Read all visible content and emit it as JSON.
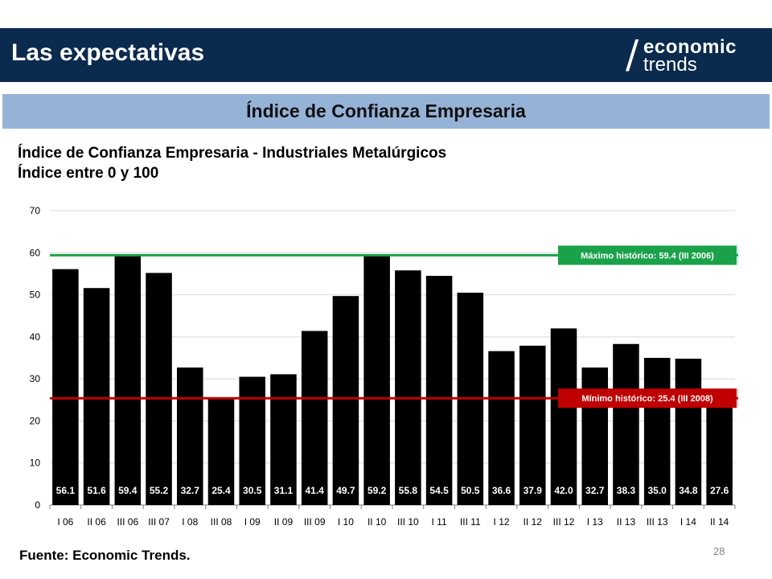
{
  "header": {
    "title": "Las expectativas",
    "logo_line1": "economic",
    "logo_line2": "trends"
  },
  "section": {
    "title": "Índice de Confianza Empresaria"
  },
  "chart_data": {
    "type": "bar",
    "title": "Índice de Confianza Empresaria - Industriales Metalúrgicos",
    "subtitle": "Índice entre 0 y 100",
    "categories": [
      "I 06",
      "II 06",
      "III 06",
      "III 07",
      "I 08",
      "III 08",
      "I 09",
      "II 09",
      "III 09",
      "I 10",
      "II 10",
      "III 10",
      "I 11",
      "III 11",
      "I 12",
      "II 12",
      "III 12",
      "I 13",
      "II 13",
      "III 13",
      "I 14",
      "II 14"
    ],
    "values": [
      56.1,
      51.6,
      59.4,
      55.2,
      32.7,
      25.4,
      30.5,
      31.1,
      41.4,
      49.7,
      59.2,
      55.8,
      54.5,
      50.5,
      36.6,
      37.9,
      42.0,
      32.7,
      38.3,
      35.0,
      34.8,
      27.6
    ],
    "labels": [
      "56.1",
      "51.6",
      "59.4",
      "55.2",
      "32.7",
      "25.4",
      "30.5",
      "31.1",
      "41.4",
      "49.7",
      "59.2",
      "55.8",
      "54.5",
      "50.5",
      "36.6",
      "37.9",
      "42.0",
      "32.7",
      "38.3",
      "35.0",
      "34.8",
      "27.6"
    ],
    "ylim": [
      0,
      70
    ],
    "yticks": [
      "0",
      "10",
      "20",
      "30",
      "40",
      "50",
      "60",
      "70"
    ],
    "grid": true,
    "bar_color": "#000000",
    "reference_lines": [
      {
        "value": 59.4,
        "label": "Máximo histórico: 59.4 (III 2006)",
        "color": "#1aa24a"
      },
      {
        "value": 25.4,
        "label": "Mínimo histórico: 25.4 (III 2008)",
        "color": "#c00000"
      }
    ]
  },
  "footer": {
    "source": "Fuente: Economic Trends.",
    "page": "28"
  },
  "colors": {
    "header_bg": "#0a2a4e",
    "section_bg": "#95b3d7",
    "max_line": "#1aa24a",
    "min_line": "#c00000"
  }
}
